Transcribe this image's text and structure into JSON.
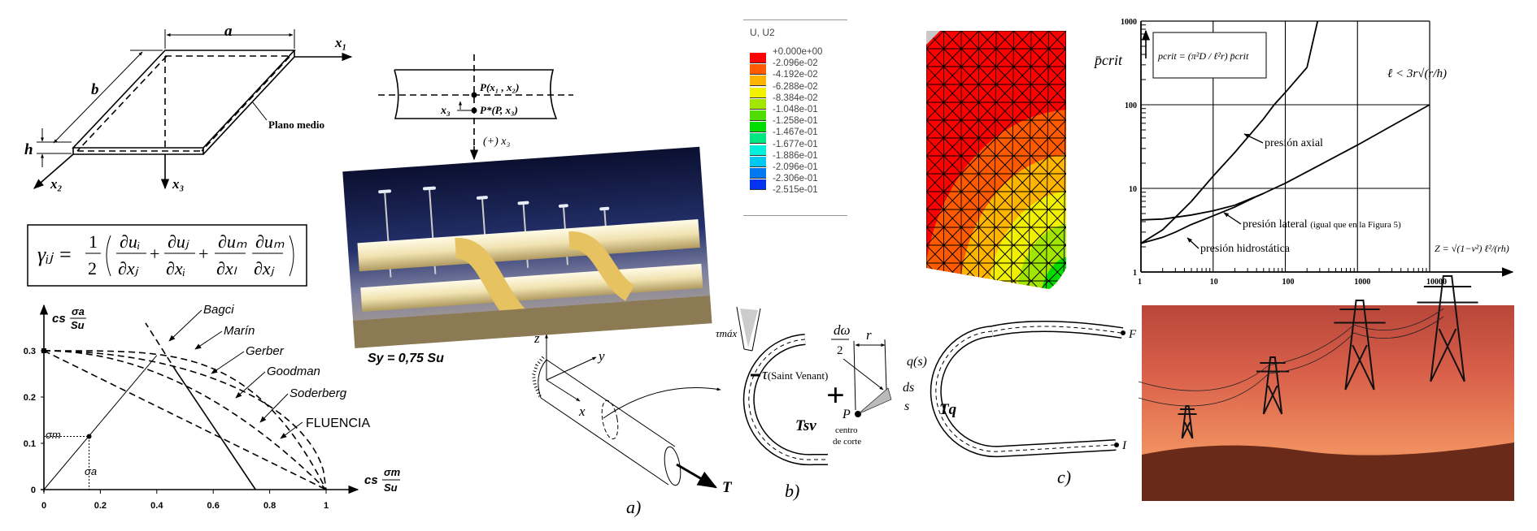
{
  "plate_diagram": {
    "label_a": "a",
    "label_b": "b",
    "label_h": "h",
    "axis_x1": "x₁",
    "axis_x2": "x₂",
    "axis_x3": "x₃",
    "mid_plane": "Plano medio"
  },
  "strain_equation": {
    "lhs": "γᵢⱼ =",
    "half_num": "1",
    "half_den": "2",
    "t1_num": "∂uᵢ",
    "t1_den": "∂xⱼ",
    "t2_num": "∂uⱼ",
    "t2_den": "∂xᵢ",
    "t3_num": "∂uₘ",
    "t3_den": "∂xₗ",
    "t4_num": "∂uₘ",
    "t4_den": "∂xⱼ",
    "plus": "+"
  },
  "section_sketch": {
    "point_p": "P(x₁ , x₂)",
    "point_p_star": "P*(P, x₃)",
    "offset_label": "x₃",
    "axis_label": "(+) x₃"
  },
  "pipes_photo": {
    "caption": "Sy = 0,75 Su"
  },
  "fem_legend": {
    "title": "U, U2",
    "levels": [
      "+0.000e+00",
      "-2.096e-02",
      "-4.192e-02",
      "-6.288e-02",
      "-8.384e-02",
      "-1.048e-01",
      "-1.258e-01",
      "-1.467e-01",
      "-1.677e-01",
      "-1.886e-01",
      "-2.096e-01",
      "-2.306e-01",
      "-2.515e-01"
    ],
    "colors": [
      "#ff0000",
      "#ff5a00",
      "#ffb400",
      "#f0f000",
      "#a0e600",
      "#50dc00",
      "#00dc00",
      "#00e682",
      "#00f0dc",
      "#00c8f0",
      "#0078f0",
      "#0032f0",
      "#0000e6"
    ]
  },
  "fem_mesh": {
    "base_color": "#ff0000",
    "contour_colors": [
      "#ff5a00",
      "#ffb400",
      "#f0f000",
      "#a0e600",
      "#00dc00"
    ],
    "fixed_corner_color": "#c8c8c8"
  },
  "chart_data": [
    {
      "type": "line",
      "log_x": true,
      "log_y": true,
      "xlim": [
        1,
        10000
      ],
      "ylim": [
        1,
        1000
      ],
      "x_ticks": [
        "1",
        "10",
        "100",
        "1000",
        "10000"
      ],
      "y_ticks": [
        "1",
        "10",
        "100",
        "1000"
      ],
      "grid": true,
      "ylabel": "p̄crit",
      "xlabel": "Z = √(1−ν²) ℓ²/(rh)",
      "formula_box": "pcrit = (π²D / ℓ²r) p̄crit",
      "condition_note": "ℓ < 3r√(r/h)",
      "series": [
        {
          "name": "presión axial",
          "x": [
            1,
            2,
            3,
            5,
            10,
            20,
            50,
            70,
            100,
            200,
            280
          ],
          "y": [
            2.2,
            3.2,
            4.5,
            7,
            14,
            27,
            68,
            100,
            140,
            280,
            1000
          ]
        },
        {
          "name": "presión lateral (igual que en la Figura 5)",
          "x": [
            1,
            2,
            5,
            10,
            20,
            50,
            70,
            100,
            300,
            1000,
            3000,
            10000
          ],
          "y": [
            4.2,
            4.3,
            4.8,
            5.4,
            6.3,
            8.7,
            10,
            11.5,
            19,
            33,
            56,
            100
          ]
        },
        {
          "name": "presión hidrostática",
          "x": [
            1,
            2,
            3,
            5,
            10,
            20,
            40,
            50
          ],
          "y": [
            2.2,
            2.6,
            3,
            3.7,
            4.7,
            6,
            8,
            8.7
          ]
        }
      ],
      "labels": {
        "axial": "presión axial",
        "lateral": "presión lateral",
        "lateral_note": "(igual que en la Figura 5)",
        "hydro": "presión hidrostática"
      }
    },
    {
      "type": "line",
      "xlim": [
        0,
        1
      ],
      "ylim": [
        0,
        0.3
      ],
      "x_ticks": [
        "0",
        "0.2",
        "0.4",
        "0.6",
        "0.8",
        "1"
      ],
      "y_ticks": [
        "0",
        "0.1",
        "0.2",
        "0.3"
      ],
      "ylabel": "cs σa/Su",
      "xlabel": "cs σm/Su",
      "series": [
        {
          "name": "Bagci"
        },
        {
          "name": "Marín"
        },
        {
          "name": "Gerber"
        },
        {
          "name": "Goodman"
        },
        {
          "name": "Soderberg"
        },
        {
          "name": "FLUENCIA"
        }
      ],
      "marked_point": {
        "label_m": "σm",
        "label_a": "σa",
        "x": 0.16,
        "y": 0.115
      }
    }
  ],
  "torsion_figure": {
    "axis_z": "z",
    "axis_y": "y",
    "axis_x": "x",
    "torque": "T",
    "label_a": "a)",
    "tau_max": "τmáx",
    "tau_sv": "τ",
    "tau_sv_note": "(Saint Venant)",
    "t_sv": "Tsv",
    "label_b": "b)",
    "plus": "+",
    "d_omega_num": "dω",
    "d_omega_den": "2",
    "r": "r",
    "point_p": "P",
    "shear_center_1": "centro",
    "shear_center_2": "de corte",
    "q_s": "q(s)",
    "ds": "ds",
    "s": "s",
    "t_q": "Tq",
    "point_f": "F",
    "point_i": "I",
    "label_c": "c)"
  },
  "towers_photo": {
    "sky_top": "#c04a3a",
    "sky_bottom": "#f08a5a"
  }
}
